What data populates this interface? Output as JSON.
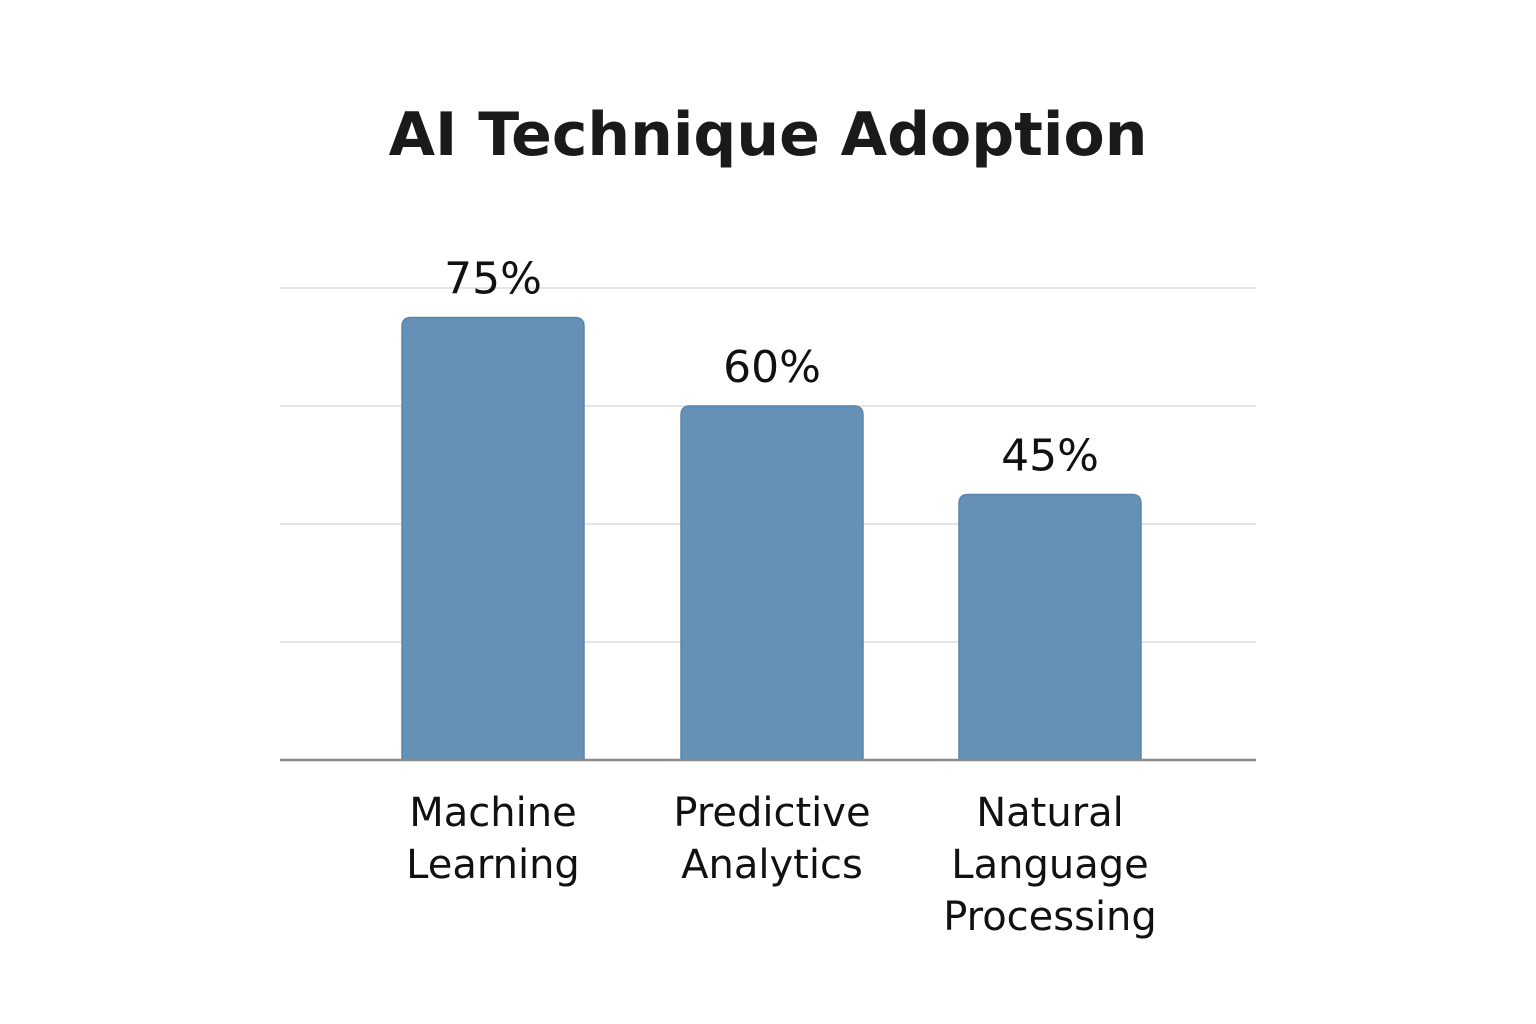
{
  "chart_data": {
    "type": "bar",
    "title": "AI Technique Adoption",
    "xlabel": "",
    "ylabel": "",
    "categories": [
      [
        "Machine",
        "Learning"
      ],
      [
        "Predictive",
        "Analytics"
      ],
      [
        "Natural",
        "Language",
        "Processing"
      ]
    ],
    "values": [
      75,
      60,
      45
    ],
    "value_labels": [
      "75%",
      "60%",
      "45%"
    ],
    "value_unit": "%",
    "ylim": [
      0,
      80
    ],
    "gridlines": [
      20,
      40,
      60,
      80
    ],
    "grid": true,
    "legend": "none",
    "colors": {
      "bar_fill": "#6491b5",
      "bar_stroke": "#5a86ab",
      "grid": "#dcdcdc",
      "baseline": "#8a8a8a",
      "text": "#111111"
    }
  }
}
